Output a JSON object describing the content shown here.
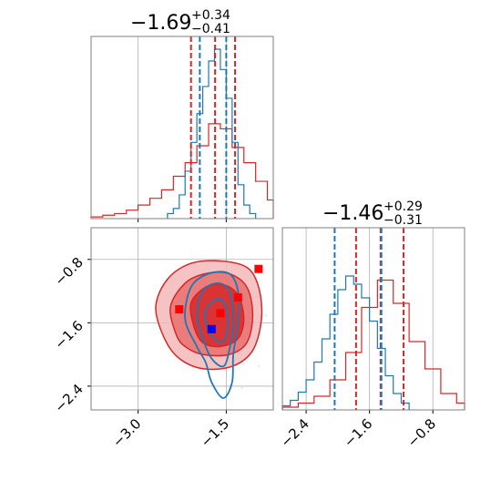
{
  "chart_data": {
    "type": "corner",
    "colors": {
      "red": "#d62728",
      "blue": "#1f77b4",
      "grid": "#b0b0b0",
      "frame": "#7f7f7f"
    },
    "param1": {
      "title": {
        "main": "−1.69",
        "plus": "+0.34",
        "minus": "−0.41"
      },
      "range": [
        -3.8,
        -0.7
      ],
      "ticks": [
        {
          "value": -3.0,
          "label": "−3.0"
        },
        {
          "value": -1.5,
          "label": "−1.5"
        }
      ],
      "red_quantiles": [
        -2.1,
        -1.69,
        -1.35
      ],
      "blue_quantiles": [
        -1.95,
        -1.5
      ],
      "blue_hist": {
        "bins": [
          -2.5,
          -2.4,
          -2.3,
          -2.2,
          -2.1,
          -2.0,
          -1.9,
          -1.8,
          -1.7,
          -1.6,
          -1.5,
          -1.4,
          -1.3,
          -1.2,
          -1.1,
          -1.0
        ],
        "heights": [
          0.03,
          0.06,
          0.14,
          0.28,
          0.45,
          0.62,
          0.78,
          0.93,
          1.0,
          0.88,
          0.71,
          0.45,
          0.2,
          0.08,
          0.03
        ]
      },
      "red_hist": {
        "bins": [
          -3.8,
          -3.6,
          -3.4,
          -3.2,
          -3.0,
          -2.8,
          -2.6,
          -2.4,
          -2.2,
          -2.0,
          -1.8,
          -1.6,
          -1.4,
          -1.2,
          -1.0,
          -0.8,
          -0.7
        ],
        "heights": [
          0.01,
          0.02,
          0.03,
          0.05,
          0.08,
          0.12,
          0.17,
          0.25,
          0.33,
          0.43,
          0.56,
          0.53,
          0.42,
          0.33,
          0.22,
          0.11
        ]
      }
    },
    "param2": {
      "title": {
        "main": "−1.46",
        "plus": "+0.29",
        "minus": "−0.31"
      },
      "range": [
        -2.7,
        -0.4
      ],
      "ticks": [
        {
          "value": -2.4,
          "label": "−2.4"
        },
        {
          "value": -1.6,
          "label": "−1.6"
        },
        {
          "value": -0.8,
          "label": "−0.8"
        }
      ],
      "y_ticks": [
        {
          "value": -0.8,
          "label": "−0.8"
        },
        {
          "value": -1.6,
          "label": "−1.6"
        },
        {
          "value": -2.4,
          "label": "−2.4"
        }
      ],
      "y_range": [
        -2.7,
        -0.4
      ],
      "red_quantiles": [
        -1.77,
        -1.46,
        -1.17
      ],
      "blue_quantiles": [
        -2.04,
        -1.45
      ],
      "blue_hist": {
        "bins": [
          -2.7,
          -2.6,
          -2.5,
          -2.4,
          -2.3,
          -2.2,
          -2.1,
          -2.0,
          -1.9,
          -1.8,
          -1.7,
          -1.6,
          -1.5,
          -1.4,
          -1.3,
          -1.2,
          -1.1
        ],
        "heights": [
          0.03,
          0.07,
          0.13,
          0.22,
          0.35,
          0.52,
          0.7,
          0.88,
          0.98,
          0.92,
          0.82,
          0.65,
          0.45,
          0.25,
          0.12,
          0.05
        ]
      },
      "red_hist": {
        "bins": [
          -2.7,
          -2.5,
          -2.3,
          -2.1,
          -1.9,
          -1.7,
          -1.5,
          -1.3,
          -1.1,
          -0.9,
          -0.7,
          -0.5,
          -0.4
        ],
        "heights": [
          0.02,
          0.05,
          0.1,
          0.22,
          0.42,
          0.75,
          0.95,
          0.78,
          0.5,
          0.3,
          0.12,
          0.05
        ]
      }
    },
    "joint": {
      "red_contours": [
        {
          "level": "outer",
          "points": [
            [
              -2.55,
              -1.8
            ],
            [
              -2.7,
              -1.4
            ],
            [
              -2.5,
              -1.05
            ],
            [
              -2.1,
              -0.85
            ],
            [
              -1.6,
              -0.82
            ],
            [
              -1.15,
              -0.9
            ],
            [
              -0.95,
              -1.15
            ],
            [
              -0.9,
              -1.55
            ],
            [
              -1.05,
              -1.95
            ],
            [
              -1.4,
              -2.15
            ],
            [
              -1.9,
              -2.18
            ],
            [
              -2.3,
              -2.05
            ]
          ]
        },
        {
          "level": "middle",
          "points": [
            [
              -2.35,
              -1.75
            ],
            [
              -2.45,
              -1.4
            ],
            [
              -2.2,
              -1.1
            ],
            [
              -1.85,
              -0.98
            ],
            [
              -1.45,
              -0.98
            ],
            [
              -1.15,
              -1.15
            ],
            [
              -1.05,
              -1.5
            ],
            [
              -1.15,
              -1.85
            ],
            [
              -1.45,
              -2.0
            ],
            [
              -1.9,
              -2.0
            ],
            [
              -2.2,
              -1.9
            ]
          ]
        },
        {
          "level": "inner",
          "points": [
            [
              -2.05,
              -1.65
            ],
            [
              -2.1,
              -1.35
            ],
            [
              -1.85,
              -1.15
            ],
            [
              -1.55,
              -1.12
            ],
            [
              -1.3,
              -1.25
            ],
            [
              -1.2,
              -1.55
            ],
            [
              -1.3,
              -1.8
            ],
            [
              -1.6,
              -1.9
            ],
            [
              -1.9,
              -1.85
            ]
          ]
        }
      ],
      "blue_contours": [
        {
          "level": "outer",
          "points": [
            [
              -2.0,
              -1.9
            ],
            [
              -2.2,
              -1.55
            ],
            [
              -2.1,
              -1.15
            ],
            [
              -1.8,
              -0.98
            ],
            [
              -1.45,
              -0.98
            ],
            [
              -1.3,
              -1.2
            ],
            [
              -1.3,
              -1.6
            ],
            [
              -1.38,
              -2.0
            ],
            [
              -1.4,
              -2.35
            ],
            [
              -1.55,
              -2.55
            ],
            [
              -1.75,
              -2.35
            ],
            [
              -1.85,
              -2.1
            ]
          ]
        },
        {
          "level": "middle",
          "points": [
            [
              -1.9,
              -1.8
            ],
            [
              -2.0,
              -1.5
            ],
            [
              -1.9,
              -1.2
            ],
            [
              -1.65,
              -1.1
            ],
            [
              -1.45,
              -1.2
            ],
            [
              -1.38,
              -1.55
            ],
            [
              -1.45,
              -1.95
            ],
            [
              -1.55,
              -2.15
            ],
            [
              -1.75,
              -2.05
            ]
          ]
        },
        {
          "level": "inner",
          "points": [
            [
              -1.8,
              -1.7
            ],
            [
              -1.85,
              -1.45
            ],
            [
              -1.65,
              -1.3
            ],
            [
              -1.5,
              -1.4
            ],
            [
              -1.48,
              -1.7
            ],
            [
              -1.6,
              -1.85
            ]
          ]
        }
      ],
      "red_markers": [
        [
          -2.3,
          -1.43
        ],
        [
          -1.6,
          -1.48
        ],
        [
          -1.3,
          -1.28
        ],
        [
          -0.95,
          -0.92
        ]
      ],
      "blue_markers": [
        [
          -1.75,
          -1.68
        ]
      ]
    }
  }
}
